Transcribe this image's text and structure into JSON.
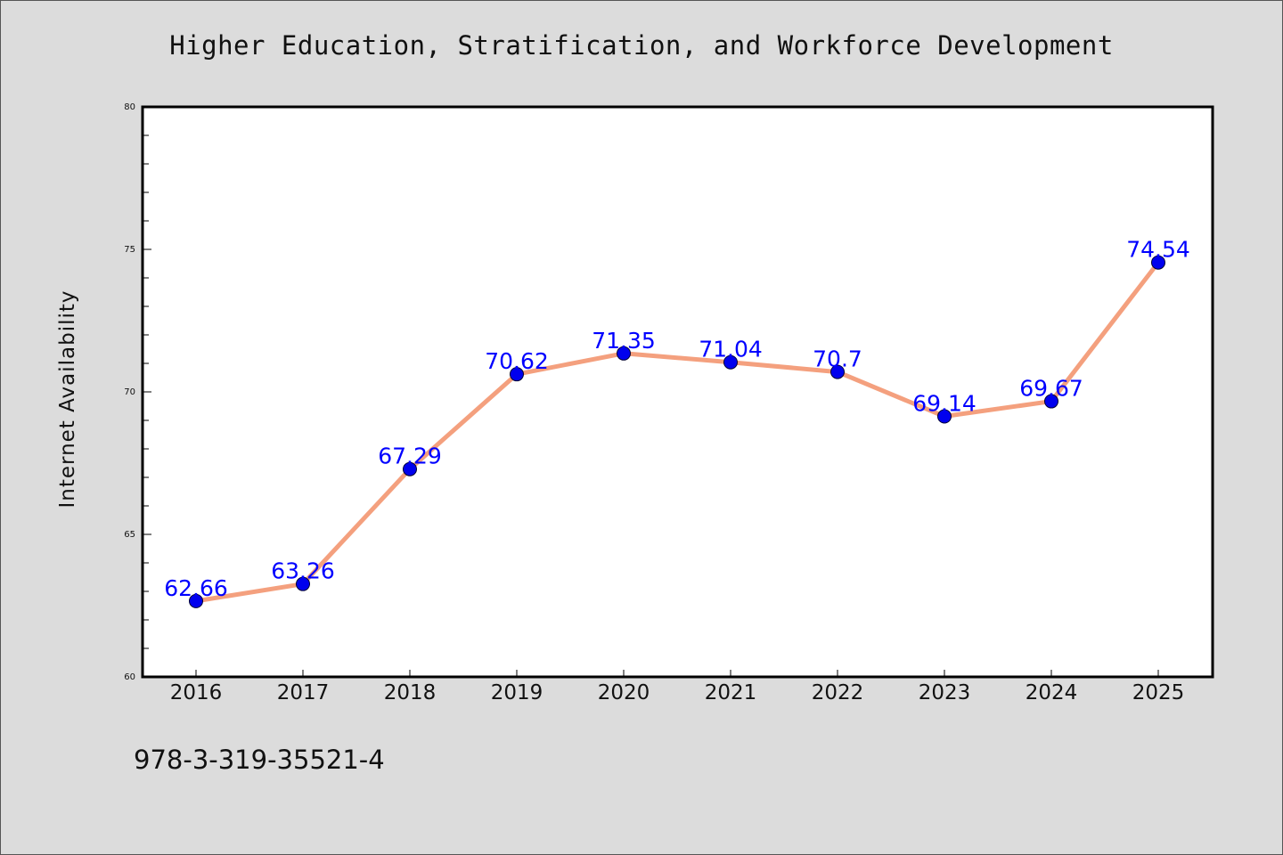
{
  "title": "Higher Education, Stratification, and Workforce Development",
  "footer_text": "978-3-319-35521-4",
  "colors": {
    "background": "#dcdcdc",
    "plot_background": "#ffffff",
    "line": "#f4a07e",
    "marker": "#0000ee",
    "data_label": "#0000ff"
  },
  "chart_data": {
    "type": "line",
    "title": "Higher Education, Stratification, and Workforce Development",
    "xlabel": "",
    "ylabel": "Internet Availability",
    "categories": [
      "2016",
      "2017",
      "2018",
      "2019",
      "2020",
      "2021",
      "2022",
      "2023",
      "2024",
      "2025"
    ],
    "series": [
      {
        "values": [
          62.66,
          63.26,
          67.29,
          70.62,
          71.35,
          71.04,
          70.7,
          69.14,
          69.67,
          74.54
        ],
        "labels": [
          "62.66",
          "63.26",
          "67.29",
          "70.62",
          "71.35",
          "71.04",
          "70.7",
          "69.14",
          "69.67",
          "74.54"
        ]
      }
    ],
    "ylim": [
      60,
      80
    ],
    "yticks": [
      60,
      65,
      70,
      75,
      80
    ],
    "grid": false,
    "legend": "none"
  }
}
